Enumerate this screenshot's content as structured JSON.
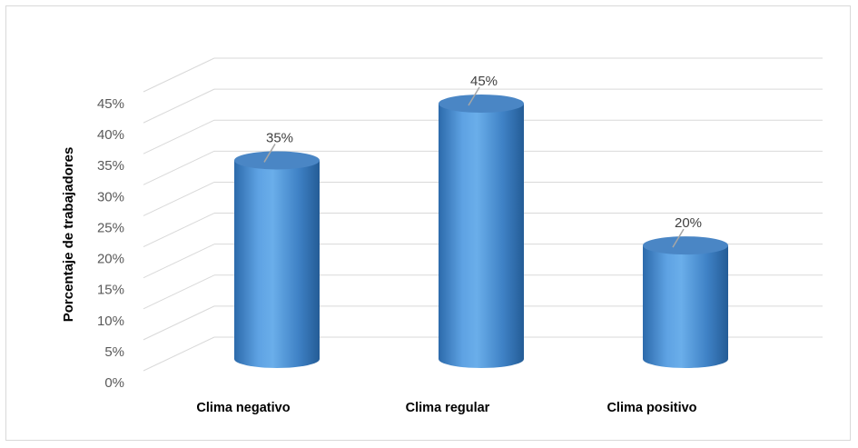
{
  "chart_data": {
    "type": "bar",
    "style": "3d-cylinder",
    "categories": [
      "Clima negativo",
      "Clima regular",
      "Clima positivo"
    ],
    "values": [
      35,
      45,
      20
    ],
    "data_labels": [
      "35%",
      "45%",
      "20%"
    ],
    "ylabel": "Porcentaje de trabajadores",
    "xlabel": "",
    "ylim": [
      0,
      45
    ],
    "yticks": [
      "0%",
      "5%",
      "10%",
      "15%",
      "20%",
      "25%",
      "30%",
      "35%",
      "40%",
      "45%"
    ],
    "grid": true,
    "legend": "none",
    "colors": {
      "bar": "#5b9bd5",
      "bar_dark": "#2e6aa8",
      "bar_top": "#4a86c5",
      "grid": "#d9d9d9"
    }
  }
}
